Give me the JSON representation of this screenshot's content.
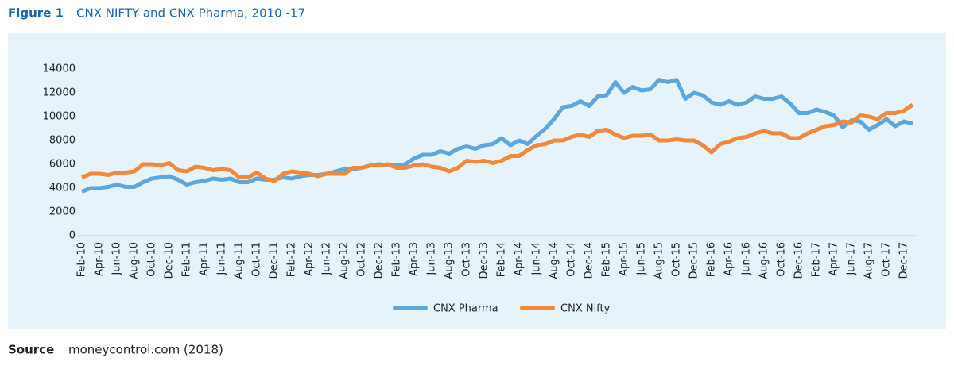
{
  "chart_data": {
    "type": "line",
    "figure_label": "Figure 1",
    "title": "CNX NIFTY and CNX Pharma, 2010 -17",
    "source_label": "Source",
    "source": "moneycontrol.com (2018)",
    "categories": [
      "Feb-10",
      null,
      "Apr-10",
      null,
      "Jun-10",
      null,
      "Aug-10",
      null,
      "Oct-10",
      null,
      "Dec-10",
      null,
      "Feb-11",
      null,
      "Apr-11",
      null,
      "Jun-11",
      null,
      "Aug-11",
      null,
      "Oct-11",
      null,
      "Dec-11",
      null,
      "Feb-12",
      null,
      "Apr-12",
      null,
      "Jun-12",
      null,
      "Aug-12",
      null,
      "Oct-12",
      null,
      "Dec-12",
      null,
      "Feb-13",
      null,
      "Apr-13",
      null,
      "Jun-13",
      null,
      "Aug-13",
      null,
      "Oct-13",
      null,
      "Dec-13",
      null,
      "Feb-14",
      null,
      "Apr-14",
      null,
      "Jun-14",
      null,
      "Aug-14",
      null,
      "Oct-14",
      null,
      "Dec-14",
      null,
      "Feb-15",
      null,
      "Apr-15",
      null,
      "Jun-15",
      null,
      "Aug-15",
      null,
      "Oct-15",
      null,
      "Dec-15",
      null,
      "Feb-16",
      null,
      "Apr-16",
      null,
      "Jun-16",
      null,
      "Aug-16",
      null,
      "Oct-16",
      null,
      "Dec-16",
      null,
      "Feb-17",
      null,
      "Apr-17",
      null,
      "Jun-17",
      null,
      "Aug-17",
      null,
      "Oct-17",
      null,
      "Dec-17",
      null
    ],
    "series": [
      {
        "name": "CNX Pharma",
        "color": "#5ea7dd",
        "values": [
          3700,
          4000,
          4000,
          4100,
          4300,
          4100,
          4100,
          4500,
          4800,
          4900,
          5000,
          4700,
          4300,
          4500,
          4600,
          4800,
          4700,
          4800,
          4500,
          4500,
          4800,
          4700,
          4700,
          4900,
          4800,
          5000,
          5100,
          5100,
          5200,
          5400,
          5600,
          5600,
          5700,
          5900,
          6000,
          5900,
          5900,
          6000,
          6500,
          6800,
          6800,
          7100,
          6900,
          7300,
          7500,
          7300,
          7600,
          7700,
          8200,
          7600,
          8000,
          7700,
          8400,
          9000,
          9800,
          10800,
          10900,
          11300,
          10900,
          11700,
          11800,
          12900,
          12000,
          12500,
          12200,
          12300,
          13100,
          12900,
          13100,
          11500,
          12000,
          11800,
          11200,
          11000,
          11300,
          11000,
          11200,
          11700,
          11500,
          11500,
          11700,
          11100,
          10300,
          10300,
          10600,
          10400,
          10100,
          9100,
          9700,
          9600,
          8900,
          9300,
          9800,
          9200,
          9600,
          9400
        ]
      },
      {
        "name": "CNX Nifty",
        "color": "#f0893a",
        "values": [
          4900,
          5200,
          5200,
          5100,
          5300,
          5300,
          5400,
          6000,
          6000,
          5900,
          6100,
          5500,
          5400,
          5800,
          5700,
          5500,
          5600,
          5500,
          4900,
          4900,
          5300,
          4800,
          4600,
          5200,
          5400,
          5300,
          5200,
          5000,
          5200,
          5200,
          5200,
          5700,
          5700,
          5900,
          5900,
          6000,
          5700,
          5700,
          5900,
          6000,
          5800,
          5700,
          5400,
          5700,
          6300,
          6200,
          6300,
          6100,
          6300,
          6700,
          6700,
          7200,
          7600,
          7700,
          8000,
          8000,
          8300,
          8500,
          8300,
          8800,
          8900,
          8500,
          8200,
          8400,
          8400,
          8500,
          8000,
          8000,
          8100,
          8000,
          8000,
          7600,
          7000,
          7700,
          7900,
          8200,
          8300,
          8600,
          8800,
          8600,
          8600,
          8200,
          8200,
          8600,
          8900,
          9200,
          9300,
          9600,
          9500,
          10100,
          10000,
          9800,
          10300,
          10300,
          10500,
          11000
        ]
      }
    ],
    "ylim": [
      0,
      14000
    ],
    "yticks": [
      0,
      2000,
      4000,
      6000,
      8000,
      10000,
      12000,
      14000
    ],
    "grid": false,
    "legend": "bottom"
  }
}
